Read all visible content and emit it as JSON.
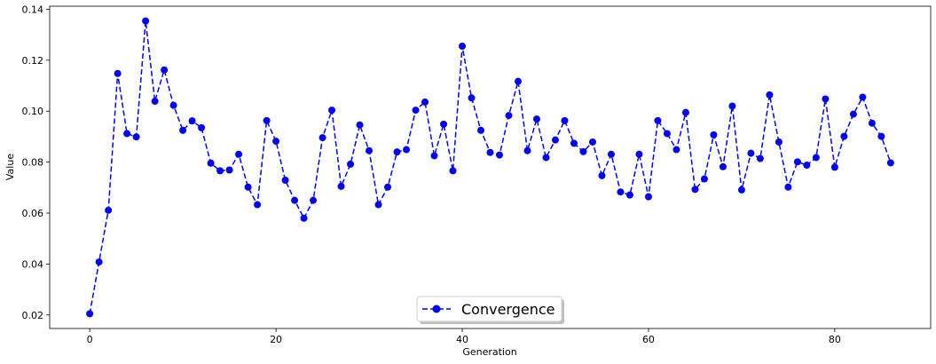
{
  "chart_data": {
    "type": "line",
    "title": "",
    "xlabel": "Generation",
    "ylabel": "Value",
    "xlim": [
      -4.3,
      90.3
    ],
    "ylim": [
      0.0147,
      0.1412
    ],
    "xticks": [
      0,
      20,
      40,
      60,
      80
    ],
    "xtick_labels": [
      "0",
      "20",
      "40",
      "60",
      "80"
    ],
    "yticks": [
      0.02,
      0.04,
      0.06,
      0.08,
      0.1,
      0.12,
      0.14
    ],
    "ytick_labels": [
      "0.02",
      "0.04",
      "0.06",
      "0.08",
      "0.10",
      "0.12",
      "0.14"
    ],
    "grid": false,
    "legend_position": "bottom-center",
    "series": [
      {
        "name": "Convergence",
        "color": "#0000ff",
        "line_style": "dashed",
        "marker": "circle",
        "x": [
          0,
          1,
          2,
          3,
          4,
          5,
          6,
          7,
          8,
          9,
          10,
          11,
          12,
          13,
          14,
          15,
          16,
          17,
          18,
          19,
          20,
          21,
          22,
          23,
          24,
          25,
          26,
          27,
          28,
          29,
          30,
          31,
          32,
          33,
          34,
          35,
          36,
          37,
          38,
          39,
          40,
          41,
          42,
          43,
          44,
          45,
          46,
          47,
          48,
          49,
          50,
          51,
          52,
          53,
          54,
          55,
          56,
          57,
          58,
          59,
          60,
          61,
          62,
          63,
          64,
          65,
          66,
          67,
          68,
          69,
          70,
          71,
          72,
          73,
          74,
          75,
          76,
          77,
          78,
          79,
          80,
          81,
          82,
          83,
          84,
          85,
          86
        ],
        "values": [
          0.0205,
          0.0408,
          0.0611,
          0.1148,
          0.0912,
          0.0899,
          0.1354,
          0.1039,
          0.1162,
          0.1023,
          0.0925,
          0.0962,
          0.0935,
          0.0796,
          0.0766,
          0.0769,
          0.0831,
          0.0702,
          0.0633,
          0.0963,
          0.0882,
          0.0729,
          0.065,
          0.058,
          0.065,
          0.0896,
          0.1004,
          0.0705,
          0.0792,
          0.0946,
          0.0845,
          0.0633,
          0.0702,
          0.084,
          0.0849,
          0.1004,
          0.1036,
          0.0825,
          0.0949,
          0.0766,
          0.1255,
          0.1052,
          0.0925,
          0.0838,
          0.0828,
          0.0983,
          0.1117,
          0.0845,
          0.0969,
          0.0818,
          0.0887,
          0.0963,
          0.0874,
          0.0841,
          0.0879,
          0.0747,
          0.0831,
          0.0683,
          0.0671,
          0.0831,
          0.0664,
          0.0963,
          0.0912,
          0.0849,
          0.0995,
          0.0693,
          0.0734,
          0.0907,
          0.0782,
          0.102,
          0.0691,
          0.0835,
          0.0814,
          0.1064,
          0.0879,
          0.0702,
          0.0801,
          0.0788,
          0.0818,
          0.1048,
          0.078,
          0.0901,
          0.0988,
          0.1055,
          0.0953,
          0.0901,
          0.0797
        ]
      }
    ]
  }
}
